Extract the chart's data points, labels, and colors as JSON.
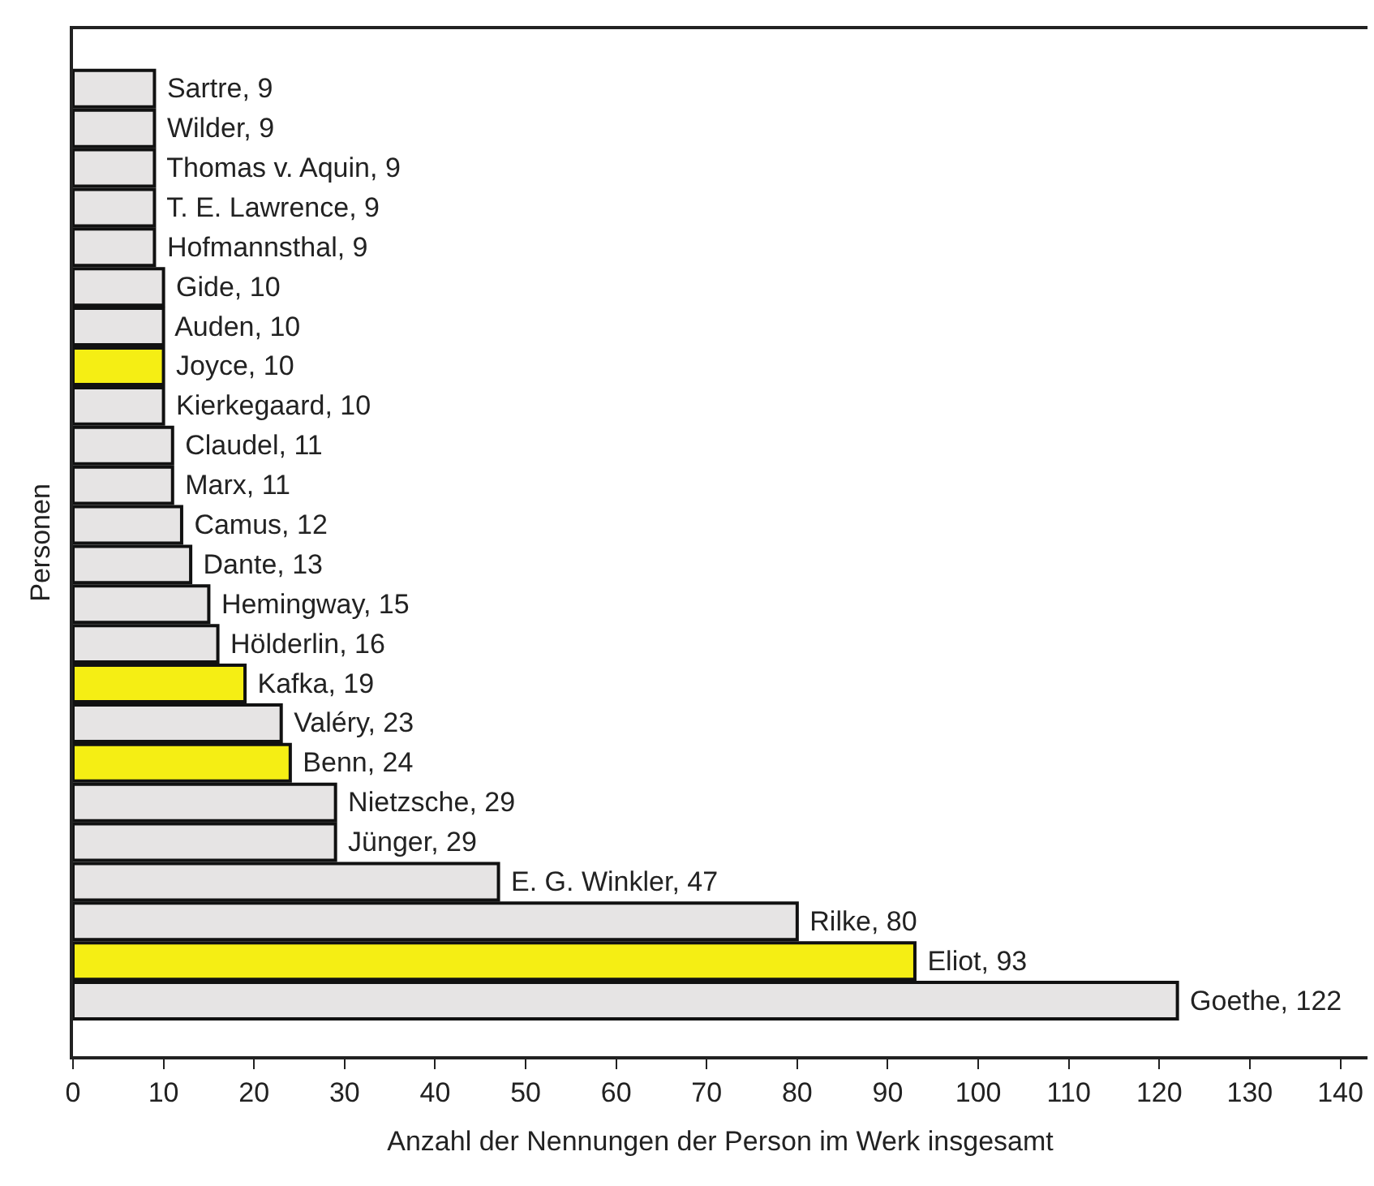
{
  "chart_data": {
    "type": "bar",
    "orientation": "horizontal",
    "xlabel": "Anzahl der Nennungen der Person im Werk insgesamt",
    "ylabel": "Personen",
    "categories": [
      null,
      null,
      null,
      null,
      null,
      null,
      null,
      null,
      null,
      null,
      null,
      null,
      null,
      null,
      null,
      null,
      null,
      null,
      null,
      null,
      null,
      null,
      null,
      null
    ],
    "values": [
      9,
      9,
      9,
      9,
      9,
      10,
      10,
      10,
      10,
      11,
      11,
      12,
      13,
      15,
      16,
      19,
      23,
      24,
      29,
      29,
      47,
      80,
      93,
      122
    ],
    "value_labels": [
      "Sartre, 9",
      "Wilder, 9",
      "Thomas v. Aquin, 9",
      "T. E. Lawrence, 9",
      "Hofmannsthal, 9",
      "Gide, 10",
      "Auden, 10",
      "Joyce, 10",
      "Kierkegaard, 10",
      "Claudel, 11",
      "Marx, 11",
      "Camus, 12",
      "Dante, 13",
      "Hemingway, 15",
      "Hölderlin, 16",
      "Kafka, 19",
      "Valéry, 23",
      "Benn, 24",
      "Nietzsche, 29",
      "Jünger, 29",
      "E. G. Winkler, 47",
      "Rilke, 80",
      "Eliot, 93",
      "Goethe, 122"
    ],
    "colors": [
      "#e6e4e4",
      "#e6e4e4",
      "#e6e4e4",
      "#e6e4e4",
      "#e6e4e4",
      "#e6e4e4",
      "#e6e4e4",
      "#f5ee14",
      "#e6e4e4",
      "#e6e4e4",
      "#e6e4e4",
      "#e6e4e4",
      "#e6e4e4",
      "#e6e4e4",
      "#e6e4e4",
      "#f5ee14",
      "#e6e4e4",
      "#f5ee14",
      "#e6e4e4",
      "#e6e4e4",
      "#e6e4e4",
      "#e6e4e4",
      "#f5ee14",
      "#e6e4e4"
    ],
    "xlim": [
      0,
      143
    ],
    "xticks": [
      0,
      10,
      20,
      30,
      40,
      50,
      60,
      70,
      80,
      90,
      100,
      110,
      120,
      130,
      140
    ],
    "tick_labels": "x"
  }
}
